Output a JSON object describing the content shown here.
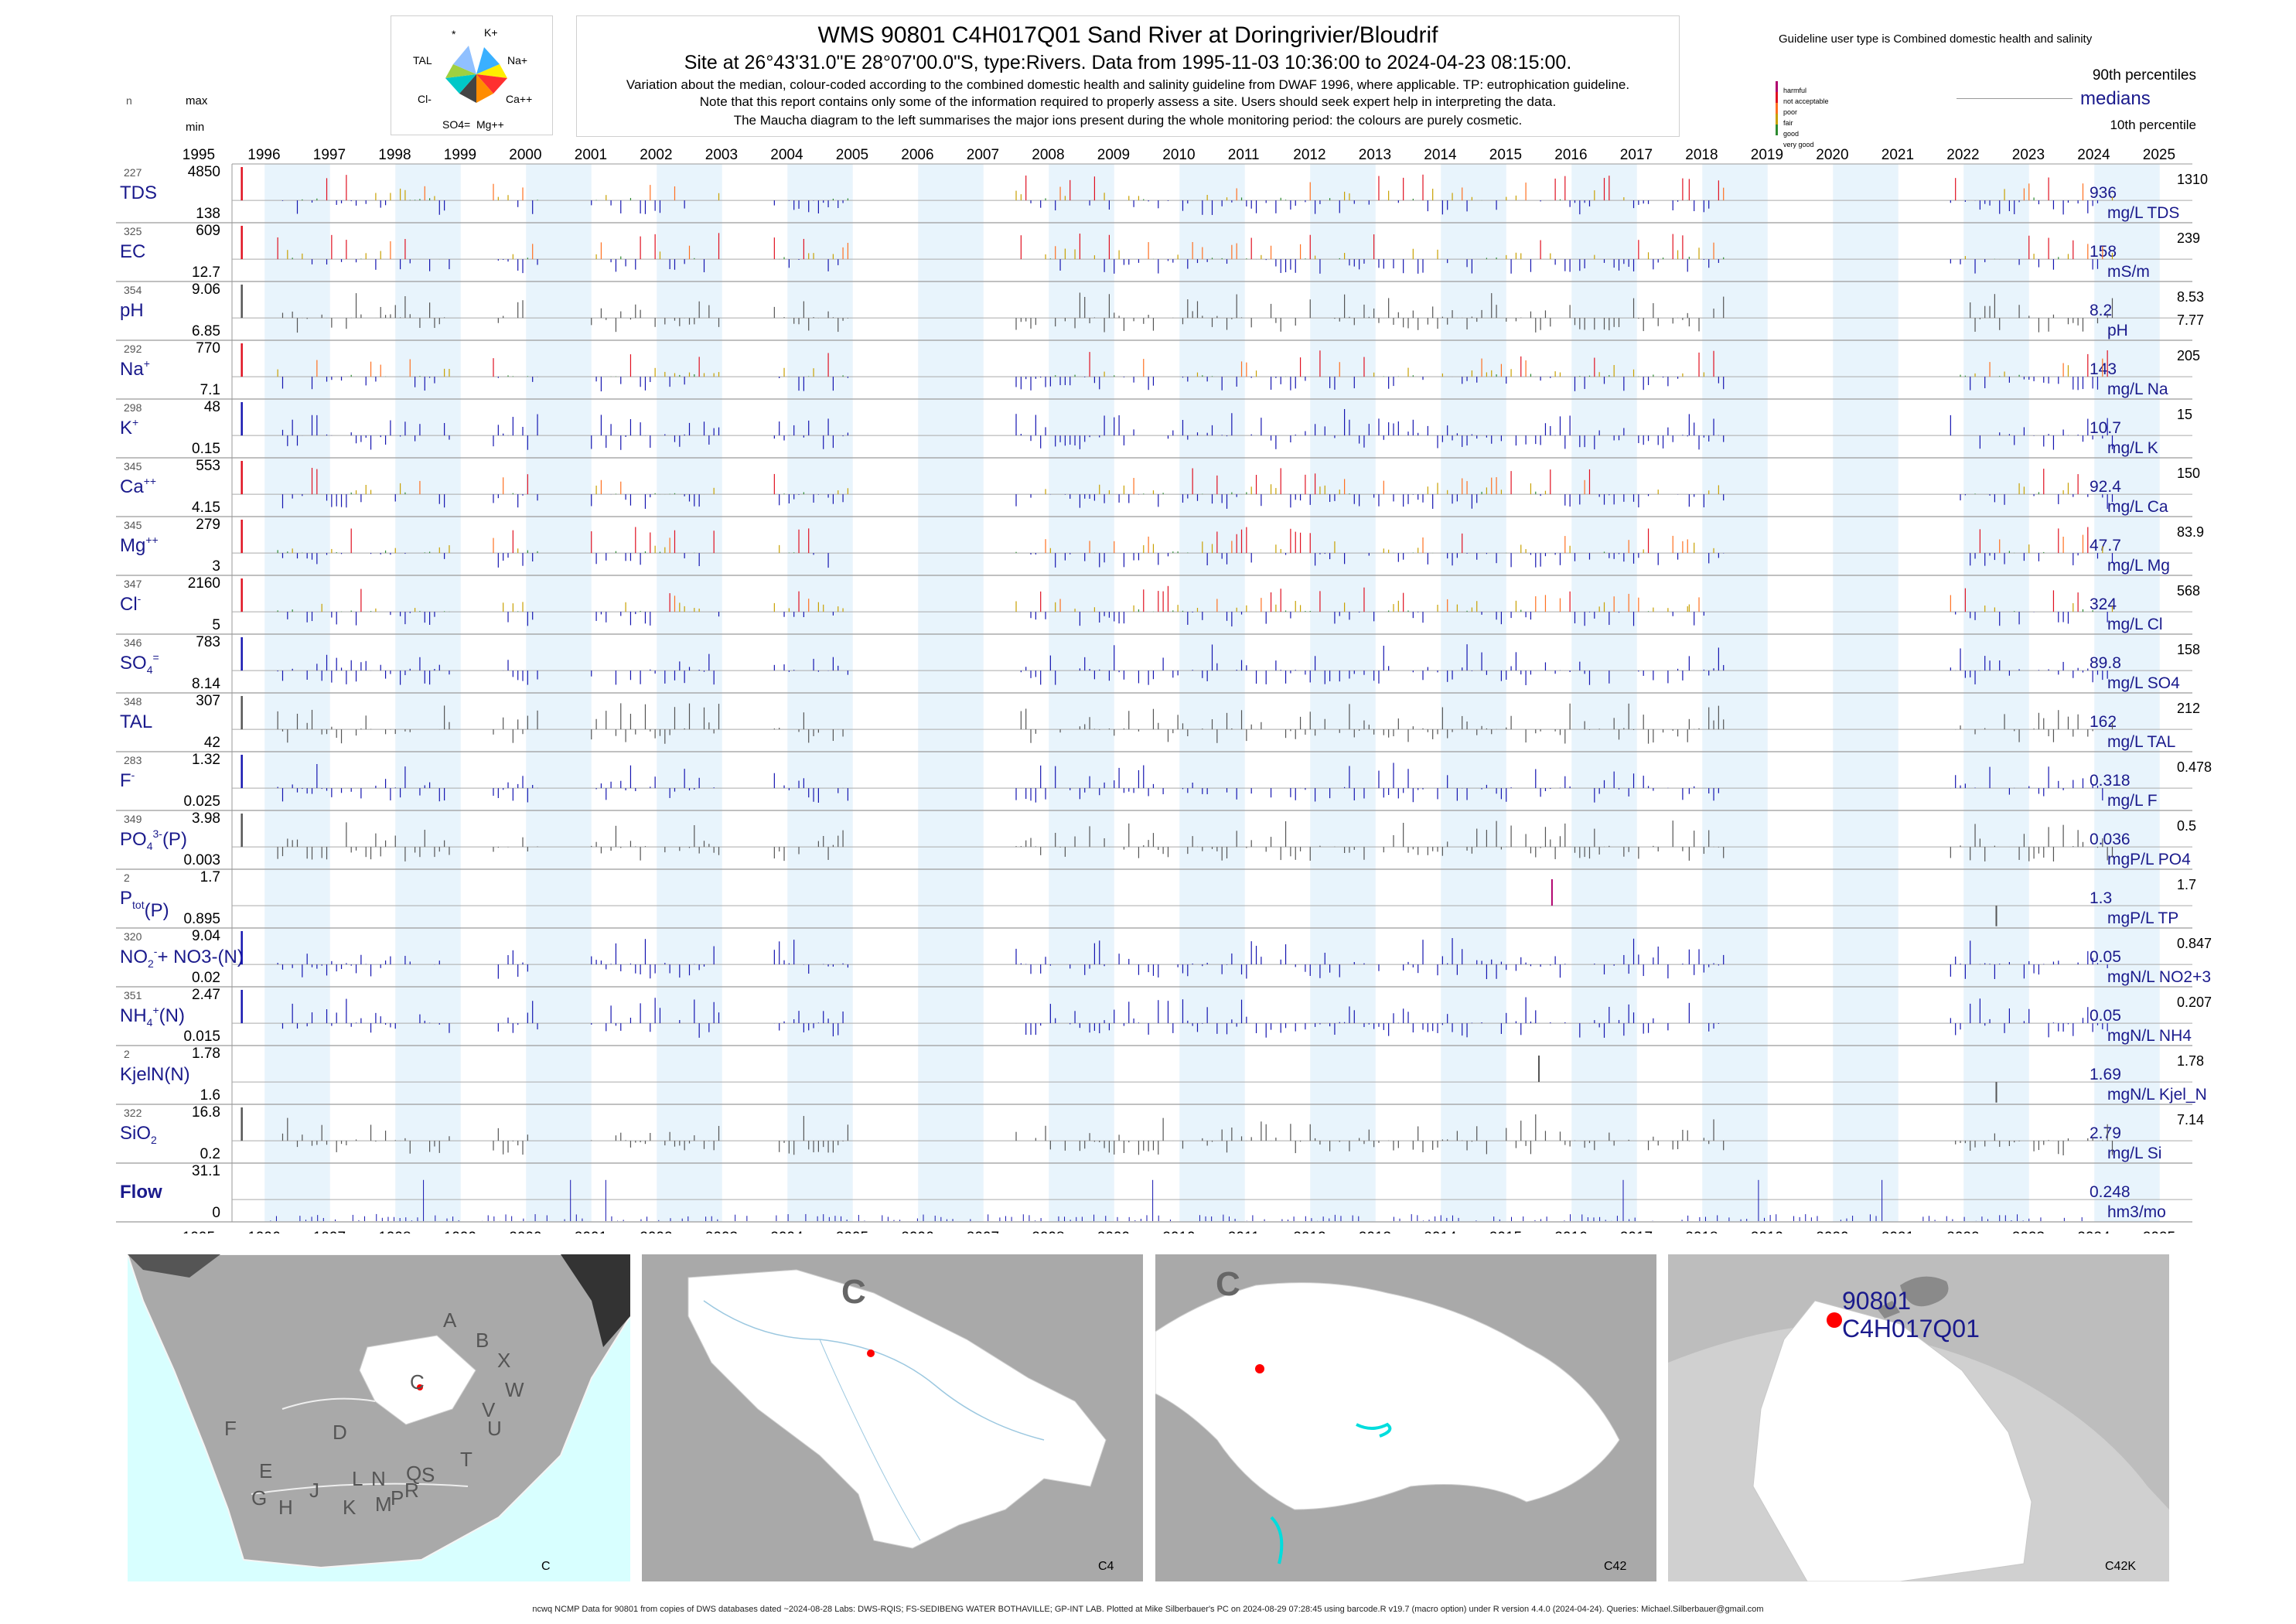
{
  "header": {
    "title": "WMS 90801 C4H017Q01 Sand River at Doringrivier/Bloudrif",
    "subtitle": "Site at 26°43'31.0\"E 28°07'00.0\"S, type:Rivers.  Data from 1995-11-03 10:36:00 to 2024-04-23 08:15:00.",
    "notes": [
      "Variation about the median,  colour-coded according to the combined domestic health and salinity guideline from DWAF 1996, where applicable. TP: eutrophication guideline.",
      "Note that this report contains only some of the information required to properly assess a site. Users should seek expert help in interpreting the data.",
      "The Maucha diagram to the left summarises the major ions present during the whole monitoring period: the colours are purely cosmetic."
    ]
  },
  "maucha": {
    "labels": [
      "*",
      "K+",
      "Na+",
      "Ca++",
      "Mg++",
      "SO4=",
      "Cl-",
      "TAL"
    ],
    "colors": [
      "#3ab0ff",
      "#f5e600",
      "#ff4040",
      "#b0e020",
      "#ff8c00",
      "#555555",
      "#00c8c8",
      "#a0d040"
    ]
  },
  "legend": {
    "guideline_title": "Guideline user type is Combined domestic health and salinity",
    "levels": [
      {
        "label": "harmful",
        "color": "#b0006e"
      },
      {
        "label": "not acceptable",
        "color": "#e01020"
      },
      {
        "label": "poor",
        "color": "#ff7020"
      },
      {
        "label": "fair",
        "color": "#c8a000"
      },
      {
        "label": "good",
        "color": "#2e8b30"
      },
      {
        "label": "very good",
        "color": "#1515b0"
      }
    ],
    "p90": "90th percentiles",
    "medians": "medians",
    "p10": "10th percentile"
  },
  "left_header": {
    "n": "n",
    "max": "max",
    "min": "min"
  },
  "chart_data": {
    "type": "bar",
    "x_range": [
      "1995",
      "2025"
    ],
    "years": [
      "1995",
      "1996",
      "1997",
      "1998",
      "1999",
      "2000",
      "2001",
      "2002",
      "2003",
      "2004",
      "2005",
      "2006",
      "2007",
      "2008",
      "2009",
      "2010",
      "2011",
      "2012",
      "2013",
      "2014",
      "2015",
      "2016",
      "2017",
      "2018",
      "2019",
      "2020",
      "2021",
      "2022",
      "2023",
      "2024",
      "2025"
    ],
    "shaded_years": [
      "1996",
      "1998",
      "2000",
      "2002",
      "2004",
      "2006",
      "2008",
      "2010",
      "2012",
      "2014",
      "2016",
      "2018",
      "2020",
      "2022",
      "2024"
    ],
    "panels": [
      {
        "key": "tds",
        "label": "TDS",
        "sup": "",
        "sub": "",
        "n": "227",
        "max": "4850",
        "min": "138",
        "median": "936",
        "p90": "1310",
        "p10": "",
        "unit": "mg/L TDS",
        "style": "guideline",
        "color": "#1515b0"
      },
      {
        "key": "ec",
        "label": "EC",
        "sup": "",
        "sub": "",
        "n": "325",
        "max": "609",
        "min": "12.7",
        "median": "158",
        "p90": "239",
        "p10": "",
        "unit": "mS/m",
        "style": "guideline",
        "color": "#1515b0"
      },
      {
        "key": "ph",
        "label": "pH",
        "sup": "",
        "sub": "",
        "n": "354",
        "max": "9.06",
        "min": "6.85",
        "median": "8.2",
        "p90": "8.53",
        "p10": "7.77",
        "unit": "pH",
        "style": "grey",
        "color": "#555555"
      },
      {
        "key": "na",
        "label": "Na",
        "sup": "+",
        "sub": "",
        "n": "292",
        "max": "770",
        "min": "7.1",
        "median": "143",
        "p90": "205",
        "p10": "",
        "unit": "mg/L Na",
        "style": "guideline",
        "color": "#1515b0"
      },
      {
        "key": "k",
        "label": "K",
        "sup": "+",
        "sub": "",
        "n": "298",
        "max": "48",
        "min": "0.15",
        "median": "10.7",
        "p90": "15",
        "p10": "",
        "unit": "mg/L K",
        "style": "blue",
        "color": "#1515b0"
      },
      {
        "key": "ca",
        "label": "Ca",
        "sup": "++",
        "sub": "",
        "n": "345",
        "max": "553",
        "min": "4.15",
        "median": "92.4",
        "p90": "150",
        "p10": "",
        "unit": "mg/L Ca",
        "style": "guideline",
        "color": "#1515b0"
      },
      {
        "key": "mg",
        "label": "Mg",
        "sup": "++",
        "sub": "",
        "n": "345",
        "max": "279",
        "min": "3",
        "median": "47.7",
        "p90": "83.9",
        "p10": "",
        "unit": "mg/L Mg",
        "style": "guideline",
        "color": "#1515b0"
      },
      {
        "key": "cl",
        "label": "Cl",
        "sup": "-",
        "sub": "",
        "n": "347",
        "max": "2160",
        "min": "5",
        "median": "324",
        "p90": "568",
        "p10": "",
        "unit": "mg/L Cl",
        "style": "guideline",
        "color": "#1515b0"
      },
      {
        "key": "so4",
        "label": "SO",
        "sup": "=",
        "sub": "4",
        "n": "346",
        "max": "783",
        "min": "8.14",
        "median": "89.8",
        "p90": "158",
        "p10": "",
        "unit": "mg/L SO4",
        "style": "blue",
        "color": "#1515b0"
      },
      {
        "key": "tal",
        "label": "TAL",
        "sup": "",
        "sub": "",
        "n": "348",
        "max": "307",
        "min": "42",
        "median": "162",
        "p90": "212",
        "p10": "",
        "unit": "mg/L TAL",
        "style": "grey",
        "color": "#555555"
      },
      {
        "key": "f",
        "label": "F",
        "sup": "-",
        "sub": "",
        "n": "283",
        "max": "1.32",
        "min": "0.025",
        "median": "0.318",
        "p90": "0.478",
        "p10": "",
        "unit": "mg/L F",
        "style": "blue",
        "color": "#1515b0"
      },
      {
        "key": "po4",
        "label": "PO",
        "sup": "3-",
        "sub": "4",
        "suffix": "(P)",
        "n": "349",
        "max": "3.98",
        "min": "0.003",
        "median": "0.036",
        "p90": "0.5",
        "p10": "",
        "unit": "mgP/L PO4",
        "style": "grey",
        "color": "#555555"
      },
      {
        "key": "tp",
        "label": "P",
        "sup": "",
        "sub": "tot",
        "suffix": "(P)",
        "n": "2",
        "max": "1.7",
        "min": "0.895",
        "median": "1.3",
        "p90": "1.7",
        "p10": "",
        "unit": "mgP/L TP",
        "style": "sparse",
        "color": "#b0006e"
      },
      {
        "key": "no",
        "label": "NO",
        "sup": "-",
        "sub": "2",
        "suffix": "+ NO3-(N)",
        "n": "320",
        "max": "9.04",
        "min": "0.02",
        "median": "0.05",
        "p90": "0.847",
        "p10": "",
        "unit": "mgN/L NO2+3",
        "style": "blue",
        "color": "#1515b0"
      },
      {
        "key": "nh4",
        "label": "NH",
        "sup": "+",
        "sub": "4",
        "suffix": "(N)",
        "n": "351",
        "max": "2.47",
        "min": "0.015",
        "median": "0.05",
        "p90": "0.207",
        "p10": "",
        "unit": "mgN/L NH4",
        "style": "blue",
        "color": "#1515b0"
      },
      {
        "key": "kjel",
        "label": "KjelN(N)",
        "sup": "",
        "sub": "",
        "n": "2",
        "max": "1.78",
        "min": "1.6",
        "median": "1.69",
        "p90": "1.78",
        "p10": "",
        "unit": "mgN/L Kjel_N",
        "style": "sparse",
        "color": "#555555"
      },
      {
        "key": "si",
        "label": "SiO",
        "sup": "",
        "sub": "2",
        "n": "322",
        "max": "16.8",
        "min": "0.2",
        "median": "2.79",
        "p90": "7.14",
        "p10": "",
        "unit": "mg/L Si",
        "style": "grey",
        "color": "#555555"
      },
      {
        "key": "flow",
        "label": "Flow",
        "sup": "",
        "sub": "",
        "n": "",
        "max": "31.1",
        "min": "0",
        "median": "0.248",
        "p90": "",
        "p10": "",
        "unit": "hm3/mo",
        "style": "flow",
        "color": "#1515b0"
      }
    ]
  },
  "maps": [
    {
      "corner_label": "C",
      "letters": [
        "A",
        "B",
        "X",
        "W",
        "V",
        "U",
        "T",
        "S",
        "R",
        "Q",
        "P",
        "N",
        "M",
        "L",
        "K",
        "J",
        "H",
        "G",
        "E",
        "F",
        "D",
        "C"
      ]
    },
    {
      "corner_label": "C4",
      "big_label": "C"
    },
    {
      "corner_label": "C42",
      "big_label": "C"
    },
    {
      "corner_label": "C42K",
      "site_id": "90801",
      "site_code": "C4H017Q01"
    }
  ],
  "footer": "ncwq NCMP Data for 90801 from copies of DWS databases dated ~2024-08-28 Labs: DWS-RQIS; FS-SEDIBENG WATER BOTHAVILLE; GP-INT LAB. Plotted at Mike Silberbauer's PC on 2024-08-29 07:28:45 using barcode.R v19.7 (macro option) under R version 4.4.0 (2024-04-24). Queries: Michael.Silberbauer@gmail.com"
}
